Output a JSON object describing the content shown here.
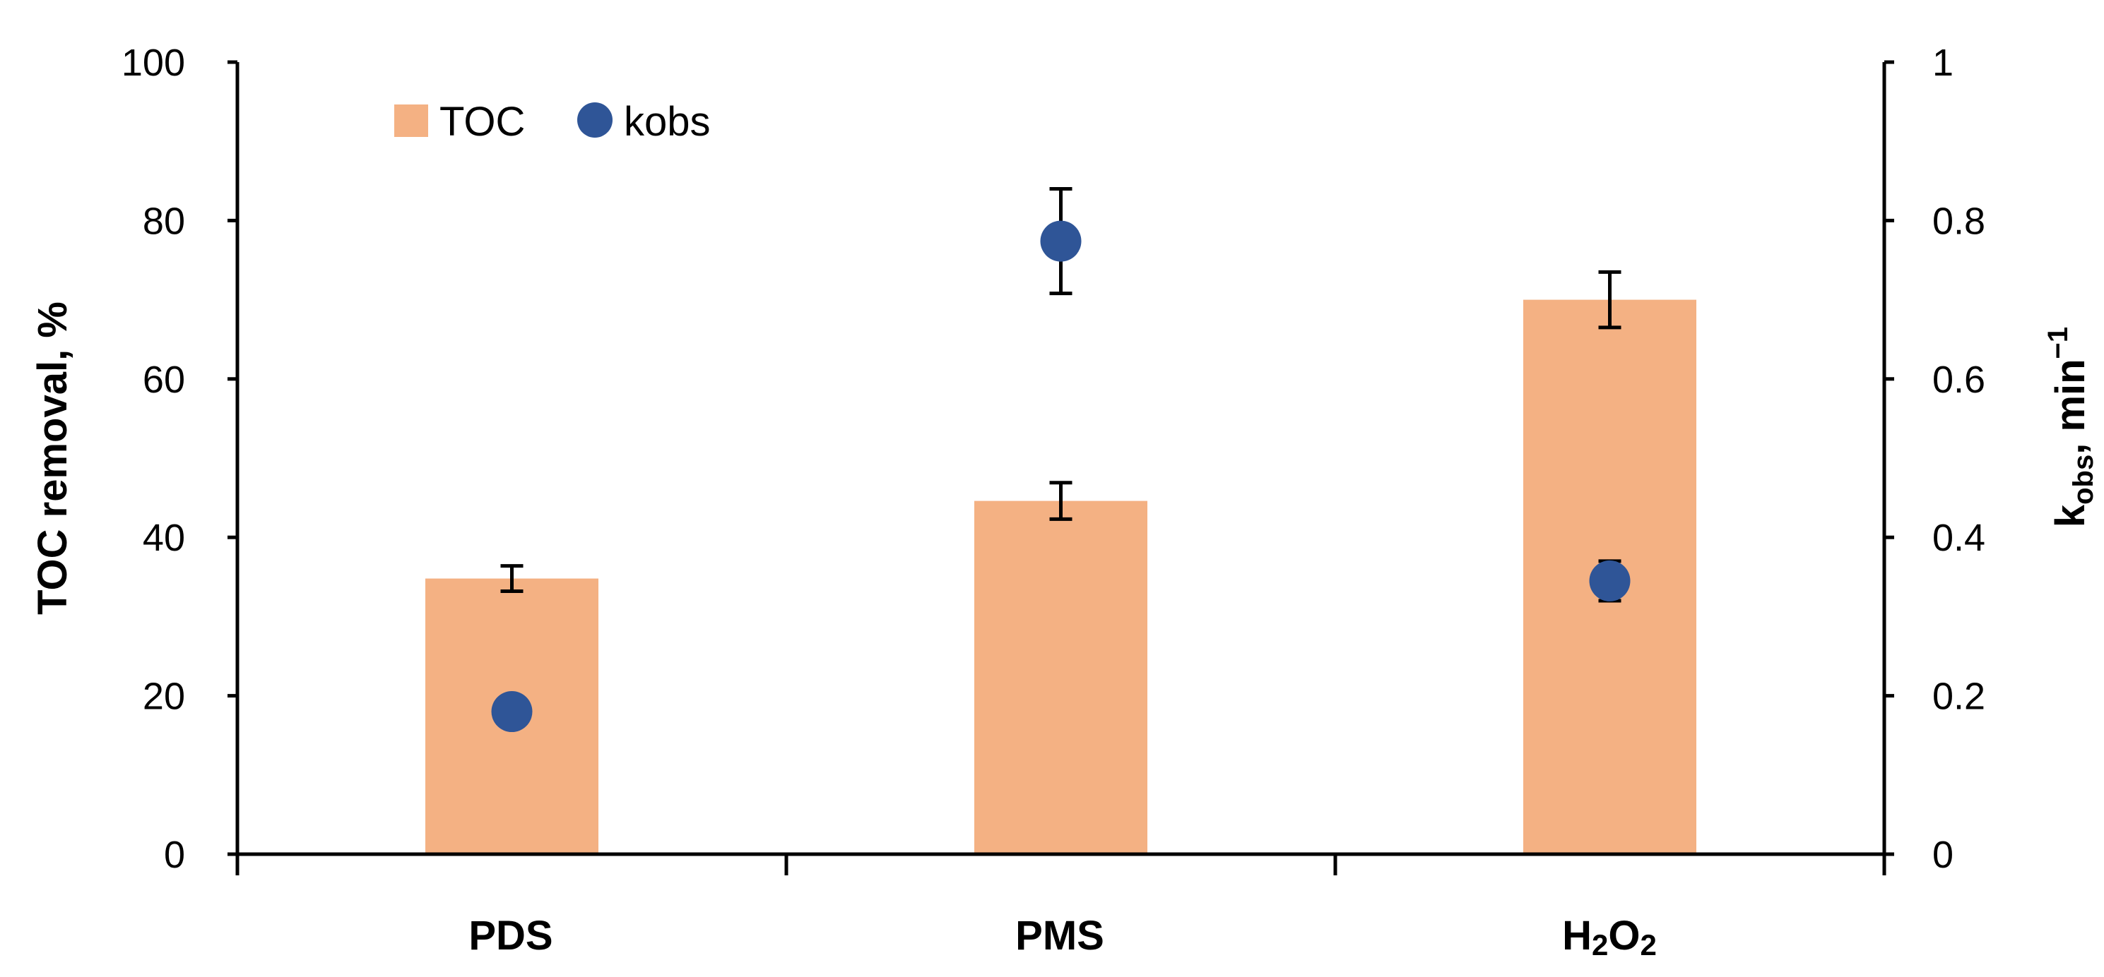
{
  "chart_data": {
    "type": "bar",
    "categories": [
      "PDS",
      "PMS",
      "H₂O₂"
    ],
    "category_parts": [
      {
        "base": "PDS"
      },
      {
        "base": "PMS"
      },
      {
        "base": "H",
        "sub1": "2",
        "mid": "O",
        "sub2": "2"
      }
    ],
    "series": [
      {
        "name": "TOC",
        "kind": "bar",
        "axis": "left",
        "color": "#F4B183",
        "values": [
          34.8,
          44.6,
          70.0
        ],
        "error": [
          1.6,
          2.3,
          3.5
        ]
      },
      {
        "name": "kobs",
        "kind": "scatter",
        "axis": "right",
        "color": "#2F5597",
        "values": [
          0.18,
          0.774,
          0.345
        ],
        "error": [
          null,
          0.066,
          0.025
        ]
      }
    ],
    "y_left": {
      "label": "TOC removal, %",
      "ylim": [
        0,
        100
      ],
      "ticks": [
        "0",
        "20",
        "40",
        "60",
        "80",
        "100"
      ]
    },
    "y_right": {
      "label_parts": {
        "k": "k",
        "sub": "obs",
        "rest": ", min",
        "sup": "−1"
      },
      "ylim": [
        0,
        1
      ],
      "ticks": [
        "0",
        "0.2",
        "0.4",
        "0.6",
        "0.8",
        "1"
      ]
    },
    "legend_position": "top-left",
    "grid": false
  }
}
